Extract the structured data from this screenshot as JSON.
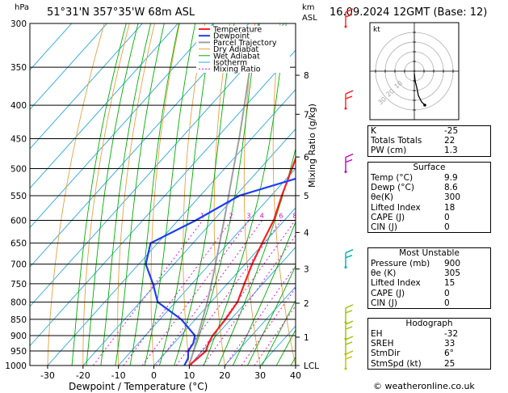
{
  "header": {
    "title": "51°31'N  357°35'W  68m  ASL",
    "datetime": "16.09.2024  12GMT  (Base: 12)",
    "unit_hpa": "hPa",
    "unit_km": "km",
    "unit_asl": "ASL",
    "copyright": "© weatheronline.co.uk"
  },
  "chart_data": {
    "type": "line",
    "xlabel": "Dewpoint / Temperature (°C)",
    "ylabel": "hPa",
    "mixing_ratio_label": "Mixing Ratio (g/kg)",
    "xlim": [
      -35,
      40
    ],
    "ylim": [
      1000,
      300
    ],
    "x_ticks": [
      -30,
      -20,
      -10,
      0,
      10,
      20,
      30,
      40
    ],
    "pressure_ticks": [
      300,
      350,
      400,
      450,
      500,
      550,
      600,
      650,
      700,
      750,
      800,
      850,
      900,
      950,
      1000
    ],
    "km_ticks": [
      {
        "label": "8",
        "p": 360
      },
      {
        "label": "7",
        "p": 413
      },
      {
        "label": "6",
        "p": 480
      },
      {
        "label": "5",
        "p": 550
      },
      {
        "label": "4",
        "p": 626
      },
      {
        "label": "3",
        "p": 712
      },
      {
        "label": "2",
        "p": 803
      },
      {
        "label": "1",
        "p": 905
      },
      {
        "label": "LCL",
        "p": 1000
      }
    ],
    "mixing_ratio_values": [
      "1",
      "2",
      "3",
      "4",
      "6",
      "8",
      "10",
      "15",
      "20",
      "25"
    ],
    "legend": [
      "Temperature",
      "Dewpoint",
      "Parcel Trajectory",
      "Dry Adiabat",
      "Wet Adiabat",
      "Isotherm",
      "Mixing Ratio"
    ],
    "colors": {
      "temperature": "#ff2020",
      "dewpoint": "#1a3cff",
      "parcel": "#a0a0a0",
      "dry_adiabat": "#e8a040",
      "wet_adiabat": "#00b000",
      "isotherm": "#2aa8e0",
      "mixing_ratio": "#e000e0"
    },
    "series": [
      {
        "name": "Temperature",
        "points": [
          [
            1000,
            9.9
          ],
          [
            975,
            10.5
          ],
          [
            950,
            11.0
          ],
          [
            925,
            9.8
          ],
          [
            900,
            9.0
          ],
          [
            850,
            8.5
          ],
          [
            800,
            7.5
          ],
          [
            750,
            4.8
          ],
          [
            700,
            2.0
          ],
          [
            650,
            -0.5
          ],
          [
            600,
            -3.0
          ],
          [
            550,
            -7.0
          ],
          [
            500,
            -11.0
          ],
          [
            450,
            -15.5
          ],
          [
            400,
            -21.0
          ],
          [
            350,
            -28.0
          ],
          [
            300,
            -37.0
          ]
        ]
      },
      {
        "name": "Dewpoint",
        "points": [
          [
            1000,
            8.6
          ],
          [
            975,
            7.8
          ],
          [
            950,
            6.0
          ],
          [
            925,
            5.5
          ],
          [
            900,
            4.0
          ],
          [
            850,
            -4.0
          ],
          [
            800,
            -15.0
          ],
          [
            750,
            -21.0
          ],
          [
            700,
            -28.0
          ],
          [
            650,
            -32.0
          ],
          [
            600,
            -25.0
          ],
          [
            550,
            -19.0
          ],
          [
            500,
            -0.5
          ],
          [
            480,
            -1.0
          ],
          [
            450,
            -3.0
          ],
          [
            400,
            -7.0
          ],
          [
            350,
            -13.0
          ],
          [
            300,
            -19.0
          ]
        ]
      },
      {
        "name": "Parcel Trajectory",
        "points": [
          [
            1000,
            9.9
          ],
          [
            950,
            7.5
          ],
          [
            900,
            4.8
          ],
          [
            850,
            2.0
          ],
          [
            800,
            -1.0
          ],
          [
            750,
            -4.5
          ],
          [
            700,
            -8.3
          ],
          [
            650,
            -12.5
          ],
          [
            600,
            -17.0
          ],
          [
            550,
            -22.0
          ],
          [
            500,
            -27.5
          ],
          [
            450,
            -33.5
          ],
          [
            400,
            -40.5
          ],
          [
            350,
            -48.5
          ],
          [
            300,
            -57.0
          ]
        ]
      }
    ]
  },
  "hodograph": {
    "label": "kt",
    "ring_labels": [
      "30",
      "20",
      "10"
    ]
  },
  "indices": {
    "top": [
      {
        "label": "K",
        "value": "-25"
      },
      {
        "label": "Totals Totals",
        "value": "22"
      },
      {
        "label": "PW (cm)",
        "value": "1.3"
      }
    ],
    "surface": {
      "title": "Surface",
      "rows": [
        {
          "label": "Temp (°C)",
          "value": "9.9"
        },
        {
          "label": "Dewp (°C)",
          "value": "8.6"
        },
        {
          "label": "θe(K)",
          "value": "300"
        },
        {
          "label": "Lifted Index",
          "value": "18"
        },
        {
          "label": "CAPE (J)",
          "value": "0"
        },
        {
          "label": "CIN (J)",
          "value": "0"
        }
      ]
    },
    "unstable": {
      "title": "Most Unstable",
      "rows": [
        {
          "label": "Pressure (mb)",
          "value": "900"
        },
        {
          "label": "θe (K)",
          "value": "305"
        },
        {
          "label": "Lifted Index",
          "value": "15"
        },
        {
          "label": "CAPE (J)",
          "value": "0"
        },
        {
          "label": "CIN (J)",
          "value": "0"
        }
      ]
    },
    "hodo": {
      "title": "Hodograph",
      "rows": [
        {
          "label": "EH",
          "value": "-32"
        },
        {
          "label": "SREH",
          "value": "33"
        },
        {
          "label": "StmDir",
          "value": "6°"
        },
        {
          "label": "StmSpd (kt)",
          "value": "25"
        }
      ]
    }
  }
}
